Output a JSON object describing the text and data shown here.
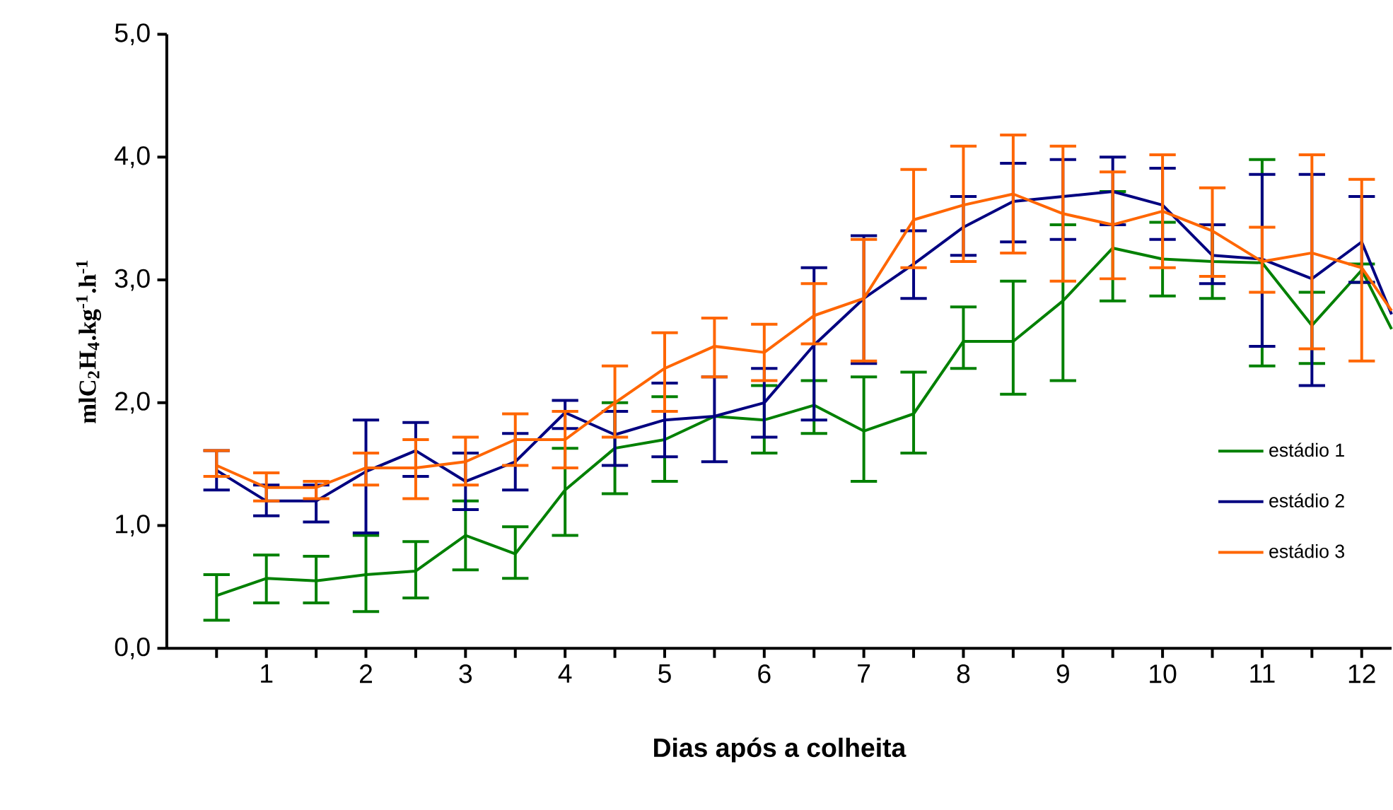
{
  "chart_data": {
    "type": "line",
    "xlabel": "Dias após a colheita",
    "ylabel": "**ml**C$_{2}$H$_{4}$.kg$^{-1}$.h$^{-1}$",
    "x": [
      0.5,
      1,
      1.5,
      2,
      2.5,
      3,
      3.5,
      4,
      4.5,
      5,
      5.5,
      6,
      6.5,
      7,
      7.5,
      8,
      8.5,
      9,
      9.5,
      10,
      10.5,
      11,
      11.5,
      12,
      12.3
    ],
    "series": [
      {
        "name": "estádio 1",
        "color": "#008000",
        "values": [
          0.43,
          0.57,
          0.55,
          0.6,
          0.63,
          0.92,
          0.77,
          1.29,
          1.63,
          1.7,
          1.89,
          1.86,
          1.98,
          1.77,
          1.91,
          2.5,
          2.5,
          2.83,
          3.26,
          3.17,
          3.15,
          3.14,
          2.63,
          3.08,
          2.6
        ],
        "errors": [
          [
            0.23,
            0.6
          ],
          [
            0.37,
            0.76
          ],
          [
            0.37,
            0.75
          ],
          [
            0.3,
            0.92
          ],
          [
            0.41,
            0.87
          ],
          [
            0.64,
            1.2
          ],
          [
            0.57,
            0.99
          ],
          [
            0.92,
            1.63
          ],
          [
            1.26,
            2.0
          ],
          [
            1.36,
            2.05
          ],
          null,
          [
            1.59,
            2.14
          ],
          [
            1.75,
            2.18
          ],
          [
            1.36,
            2.21
          ],
          [
            1.59,
            2.25
          ],
          [
            2.28,
            2.78
          ],
          [
            2.07,
            2.99
          ],
          [
            2.18,
            3.45
          ],
          [
            2.83,
            3.72
          ],
          [
            2.87,
            3.47
          ],
          [
            2.85,
            3.45
          ],
          [
            2.3,
            3.98
          ],
          [
            2.32,
            2.9
          ],
          [
            2.98,
            3.13
          ],
          null
        ]
      },
      {
        "name": "estádio 2",
        "color": "#000080",
        "values": [
          1.45,
          1.2,
          1.2,
          1.44,
          1.61,
          1.36,
          1.52,
          1.92,
          1.74,
          1.86,
          1.89,
          2.0,
          2.47,
          2.85,
          3.13,
          3.43,
          3.64,
          3.68,
          3.72,
          3.61,
          3.2,
          3.17,
          3.01,
          3.31,
          2.72
        ],
        "errors": [
          [
            1.29,
            1.61
          ],
          [
            1.08,
            1.33
          ],
          [
            1.03,
            1.33
          ],
          [
            0.94,
            1.86
          ],
          [
            1.4,
            1.84
          ],
          [
            1.13,
            1.59
          ],
          [
            1.29,
            1.75
          ],
          [
            1.79,
            2.02
          ],
          [
            1.49,
            1.93
          ],
          [
            1.56,
            2.16
          ],
          [
            1.52,
            2.21
          ],
          [
            1.72,
            2.28
          ],
          [
            1.86,
            3.1
          ],
          [
            2.32,
            3.36
          ],
          [
            2.85,
            3.4
          ],
          [
            3.2,
            3.68
          ],
          [
            3.31,
            3.95
          ],
          [
            3.33,
            3.98
          ],
          [
            3.45,
            4.0
          ],
          [
            3.33,
            3.91
          ],
          [
            2.97,
            3.45
          ],
          [
            2.46,
            3.86
          ],
          [
            2.14,
            3.86
          ],
          [
            2.98,
            3.68
          ],
          null
        ]
      },
      {
        "name": "estádio 3",
        "color": "#ff6600",
        "values": [
          1.49,
          1.31,
          1.31,
          1.47,
          1.47,
          1.52,
          1.7,
          1.7,
          2.0,
          2.28,
          2.46,
          2.41,
          2.71,
          2.85,
          3.49,
          3.61,
          3.7,
          3.54,
          3.45,
          3.56,
          3.4,
          3.15,
          3.22,
          3.1,
          2.75
        ],
        "errors": [
          [
            1.4,
            1.61
          ],
          [
            1.2,
            1.43
          ],
          [
            1.22,
            1.36
          ],
          [
            1.33,
            1.59
          ],
          [
            1.22,
            1.7
          ],
          [
            1.33,
            1.72
          ],
          [
            1.49,
            1.91
          ],
          [
            1.47,
            1.93
          ],
          [
            1.72,
            2.3
          ],
          [
            1.93,
            2.57
          ],
          [
            2.21,
            2.69
          ],
          [
            2.18,
            2.64
          ],
          [
            2.48,
            2.97
          ],
          [
            2.34,
            3.33
          ],
          [
            3.1,
            3.9
          ],
          [
            3.15,
            4.09
          ],
          [
            3.22,
            4.18
          ],
          [
            2.99,
            4.09
          ],
          [
            3.01,
            3.88
          ],
          [
            3.1,
            4.02
          ],
          [
            3.03,
            3.75
          ],
          [
            2.9,
            3.43
          ],
          [
            2.44,
            4.02
          ],
          [
            2.34,
            3.82
          ],
          null
        ]
      }
    ],
    "xlim": [
      0,
      12.3
    ],
    "xticks": [
      {
        "value": 0.5,
        "label": null
      },
      1,
      {
        "value": 1.5,
        "label": null
      },
      2,
      {
        "value": 2.5,
        "label": null
      },
      3,
      {
        "value": 3.5,
        "label": null
      },
      4,
      {
        "value": 4.5,
        "label": null
      },
      5,
      {
        "value": 5.5,
        "label": null
      },
      6,
      {
        "value": 6.5,
        "label": null
      },
      7,
      {
        "value": 7.5,
        "label": null
      },
      8,
      {
        "value": 8.5,
        "label": null
      },
      9,
      {
        "value": 9.5,
        "label": null
      },
      10,
      {
        "value": 10.5,
        "label": null
      },
      11,
      {
        "value": 11.5,
        "label": null
      },
      12
    ],
    "ylim": [
      0,
      5
    ],
    "yticks": [
      {
        "value": 0,
        "label": "0,0"
      },
      {
        "value": 1,
        "label": "1,0"
      },
      {
        "value": 2,
        "label": "2,0"
      },
      {
        "value": 3,
        "label": "3,0"
      },
      {
        "value": 4,
        "label": "4,0"
      },
      {
        "value": 5,
        "label": "5,0"
      }
    ],
    "grid": false,
    "legend": "right",
    "marker": "none",
    "line_style": "solid"
  }
}
